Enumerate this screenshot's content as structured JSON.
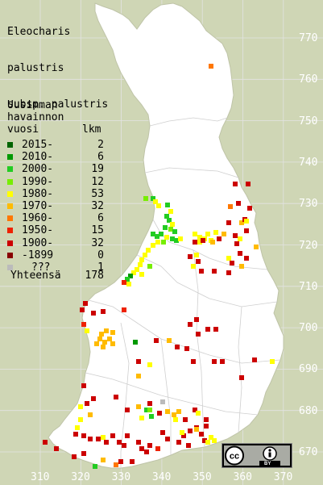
{
  "title": {
    "line1": "Eleocharis",
    "line2": "palustris",
    "line3": "subsp. palustris"
  },
  "legend": {
    "heading_1": "Uusimman",
    "heading_2": "havainnon",
    "heading_3": "vuosi",
    "count_header": "lkm",
    "rows": [
      {
        "label": "2015-",
        "count": "2",
        "color": "#006400"
      },
      {
        "label": "2010-",
        "count": "6",
        "color": "#009900"
      },
      {
        "label": "2000-",
        "count": "19",
        "color": "#22cc22"
      },
      {
        "label": "1990-",
        "count": "12",
        "color": "#77ee00"
      },
      {
        "label": "1980-",
        "count": "53",
        "color": "#ffff00"
      },
      {
        "label": "1970-",
        "count": "32",
        "color": "#ffbb00"
      },
      {
        "label": "1960-",
        "count": "6",
        "color": "#ff7700"
      },
      {
        "label": "1950-",
        "count": "15",
        "color": "#ee2200"
      },
      {
        "label": "1900-",
        "count": "32",
        "color": "#cc0000"
      },
      {
        "label": "-1899",
        "count": "0",
        "color": "#880000"
      },
      {
        "label": "???",
        "count": "1",
        "color": "#bbbbbb"
      }
    ],
    "total_label": "Yhteensä",
    "total_count": "178"
  },
  "grid": {
    "northing": [
      "770",
      "760",
      "750",
      "740",
      "730",
      "720",
      "710",
      "700",
      "690",
      "680",
      "670"
    ],
    "easting": [
      "310",
      "320",
      "330",
      "340",
      "350",
      "360",
      "370"
    ]
  },
  "license_badge": {
    "icon": "cc-by-icon",
    "text": "BY"
  },
  "colors": {
    "background": "#cfd6b5",
    "land": "#ffffff",
    "grid_line": "#e3e3e3",
    "border_line": "#c8c8c8"
  }
}
